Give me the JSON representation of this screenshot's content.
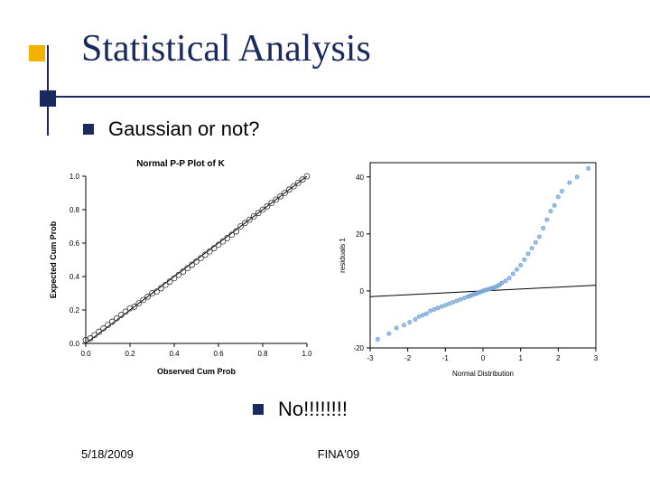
{
  "title": "Statistical Analysis",
  "bullet1": "Gaussian or not?",
  "bullet2": "No!!!!!!!!",
  "footer_left": "5/18/2009",
  "footer_center": "FINA'09",
  "colors": {
    "navy": "#1a2a5e",
    "orange": "#f3b200",
    "chart_line": "#000000",
    "chart_marker": "#333333",
    "qq_marker": "#7aa8d8",
    "axis": "#000000"
  },
  "pp_plot": {
    "type": "scatter-line",
    "title": "Normal P-P Plot of K",
    "title_fontsize": 10,
    "xlabel": "Observed Cum Prob",
    "ylabel": "Expected Cum Prob",
    "label_fontsize": 9,
    "xlim": [
      0.0,
      1.0
    ],
    "ylim": [
      0.0,
      1.0
    ],
    "xtick_step": 0.2,
    "ytick_step": 0.2,
    "tick_fontsize": 8,
    "ref_line": {
      "x1": 0.0,
      "y1": 0.0,
      "x2": 1.0,
      "y2": 1.0,
      "color": "#000000",
      "width": 1
    },
    "marker": {
      "shape": "circle",
      "size": 3,
      "stroke": "#333333",
      "fill": "none"
    },
    "background_color": "#ffffff",
    "points": [
      [
        0.0,
        0.02
      ],
      [
        0.02,
        0.03
      ],
      [
        0.04,
        0.05
      ],
      [
        0.06,
        0.07
      ],
      [
        0.08,
        0.09
      ],
      [
        0.1,
        0.11
      ],
      [
        0.12,
        0.13
      ],
      [
        0.14,
        0.15
      ],
      [
        0.16,
        0.17
      ],
      [
        0.18,
        0.19
      ],
      [
        0.2,
        0.21
      ],
      [
        0.22,
        0.22
      ],
      [
        0.24,
        0.24
      ],
      [
        0.26,
        0.26
      ],
      [
        0.28,
        0.28
      ],
      [
        0.3,
        0.3
      ],
      [
        0.32,
        0.31
      ],
      [
        0.34,
        0.33
      ],
      [
        0.36,
        0.35
      ],
      [
        0.38,
        0.37
      ],
      [
        0.4,
        0.39
      ],
      [
        0.42,
        0.41
      ],
      [
        0.44,
        0.43
      ],
      [
        0.46,
        0.45
      ],
      [
        0.48,
        0.47
      ],
      [
        0.5,
        0.49
      ],
      [
        0.52,
        0.51
      ],
      [
        0.54,
        0.53
      ],
      [
        0.56,
        0.55
      ],
      [
        0.58,
        0.57
      ],
      [
        0.6,
        0.59
      ],
      [
        0.62,
        0.61
      ],
      [
        0.64,
        0.63
      ],
      [
        0.66,
        0.65
      ],
      [
        0.68,
        0.67
      ],
      [
        0.7,
        0.7
      ],
      [
        0.72,
        0.72
      ],
      [
        0.74,
        0.74
      ],
      [
        0.76,
        0.76
      ],
      [
        0.78,
        0.78
      ],
      [
        0.8,
        0.8
      ],
      [
        0.82,
        0.82
      ],
      [
        0.84,
        0.84
      ],
      [
        0.86,
        0.86
      ],
      [
        0.88,
        0.88
      ],
      [
        0.9,
        0.9
      ],
      [
        0.92,
        0.92
      ],
      [
        0.94,
        0.94
      ],
      [
        0.96,
        0.96
      ],
      [
        0.98,
        0.98
      ],
      [
        1.0,
        1.0
      ]
    ]
  },
  "qq_plot": {
    "type": "scatter-line",
    "xlabel": "Normal Distribution",
    "ylabel": "residuals 1",
    "label_fontsize": 8,
    "xlim": [
      -3,
      3
    ],
    "ylim": [
      -20,
      45
    ],
    "xticks": [
      -3,
      -2,
      -1,
      0,
      1,
      2,
      3
    ],
    "yticks": [
      -20,
      0,
      20,
      40
    ],
    "tick_fontsize": 8,
    "ref_line": {
      "x1": -3,
      "y1": -2,
      "x2": 3,
      "y2": 2,
      "color": "#000000",
      "width": 1
    },
    "marker": {
      "shape": "circle",
      "size": 2,
      "stroke": "#7aa8d8",
      "fill": "#7aa8d8",
      "opacity": 0.7
    },
    "background_color": "#ffffff",
    "points": [
      [
        -2.8,
        -17
      ],
      [
        -2.5,
        -15
      ],
      [
        -2.3,
        -13
      ],
      [
        -2.1,
        -12
      ],
      [
        -1.95,
        -11
      ],
      [
        -1.8,
        -10
      ],
      [
        -1.7,
        -9
      ],
      [
        -1.6,
        -8.5
      ],
      [
        -1.5,
        -8
      ],
      [
        -1.4,
        -7
      ],
      [
        -1.3,
        -6.5
      ],
      [
        -1.2,
        -6
      ],
      [
        -1.1,
        -5.5
      ],
      [
        -1.0,
        -5
      ],
      [
        -0.9,
        -4.5
      ],
      [
        -0.8,
        -4
      ],
      [
        -0.7,
        -3.5
      ],
      [
        -0.6,
        -3
      ],
      [
        -0.5,
        -2.5
      ],
      [
        -0.4,
        -2
      ],
      [
        -0.35,
        -1.8
      ],
      [
        -0.3,
        -1.5
      ],
      [
        -0.25,
        -1.2
      ],
      [
        -0.2,
        -1
      ],
      [
        -0.15,
        -0.8
      ],
      [
        -0.1,
        -0.5
      ],
      [
        -0.05,
        -0.3
      ],
      [
        0.0,
        0.0
      ],
      [
        0.05,
        0.2
      ],
      [
        0.1,
        0.4
      ],
      [
        0.15,
        0.6
      ],
      [
        0.2,
        0.8
      ],
      [
        0.25,
        1.0
      ],
      [
        0.3,
        1.2
      ],
      [
        0.35,
        1.5
      ],
      [
        0.4,
        1.8
      ],
      [
        0.45,
        2.2
      ],
      [
        0.5,
        2.8
      ],
      [
        0.6,
        3.5
      ],
      [
        0.7,
        4.5
      ],
      [
        0.8,
        6
      ],
      [
        0.9,
        7.5
      ],
      [
        1.0,
        9
      ],
      [
        1.1,
        11
      ],
      [
        1.2,
        13
      ],
      [
        1.3,
        15
      ],
      [
        1.4,
        17
      ],
      [
        1.5,
        19
      ],
      [
        1.6,
        22
      ],
      [
        1.7,
        25
      ],
      [
        1.8,
        28
      ],
      [
        1.9,
        30
      ],
      [
        2.0,
        33
      ],
      [
        2.1,
        35
      ],
      [
        2.3,
        38
      ],
      [
        2.5,
        40
      ],
      [
        2.8,
        43
      ]
    ]
  }
}
